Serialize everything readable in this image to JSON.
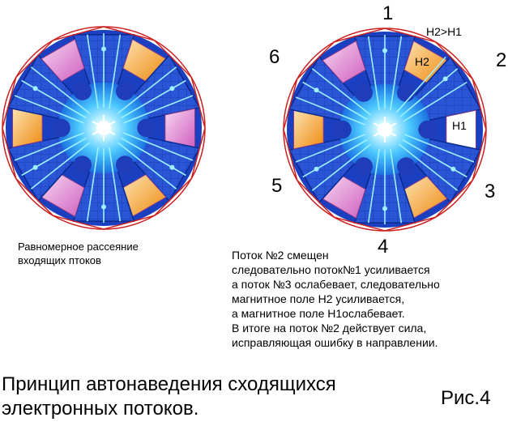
{
  "labels": {
    "n1": "1",
    "n2": "2",
    "n3": "3",
    "n4": "4",
    "n5": "5",
    "n6": "6",
    "relation": "H2>H1",
    "h2": "H2",
    "h1": "H1"
  },
  "left_caption": {
    "line1": "Равномерное рассеяние",
    "line2": "входящих птоков"
  },
  "right_caption": {
    "lines": [
      "Поток №2 смещен",
      "следовательно поток№1 усиливается",
      "а поток №3 ослабевает, следовательно",
      "магнитное поле H2 усиливается,",
      "а магнитное поле H1ослабевает.",
      "В итоге на поток №2 действует сила,",
      "исправляющая ошибку в направлении."
    ]
  },
  "title": {
    "line1": "Принцип автонаведения сходящихся",
    "line2": "электронных потоков."
  },
  "figure_label": "Рис.4",
  "colors": {
    "blue_sector": "#2a55d6",
    "pink_sector": "#e070c8",
    "orange_sector": "#f0a030",
    "red_ring": "#cc2020",
    "flow_line": "#9ff0ff",
    "center_glow": "#4cc8ff"
  }
}
